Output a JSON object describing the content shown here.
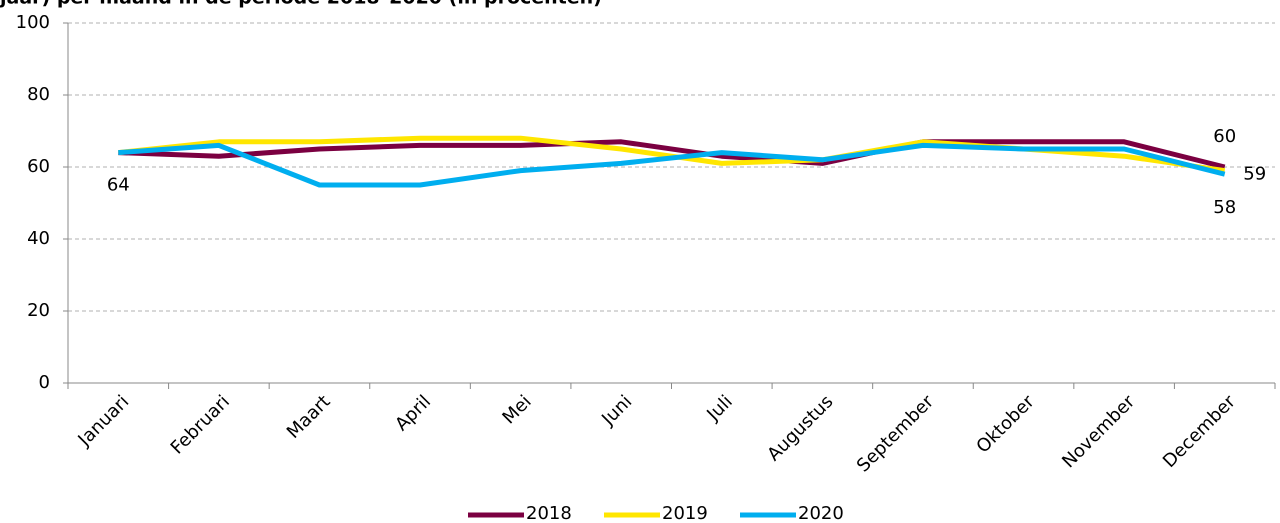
{
  "chart_data": {
    "type": "line",
    "title": "jaar) per maand in de periode 2018–2020 (in procenten)",
    "categories": [
      "Januari",
      "Februari",
      "Maart",
      "April",
      "Mei",
      "Juni",
      "Juli",
      "Augustus",
      "September",
      "Oktober",
      "November",
      "December"
    ],
    "series": [
      {
        "name": "2018",
        "color": "#7b0041",
        "values": [
          64,
          63,
          65,
          66,
          66,
          67,
          63,
          61,
          67,
          67,
          67,
          60
        ],
        "labeled": [
          11
        ]
      },
      {
        "name": "2019",
        "color": "#ffe600",
        "values": [
          64,
          67,
          67,
          68,
          68,
          65,
          61,
          62,
          67,
          65,
          63,
          59
        ],
        "labeled": [
          11
        ]
      },
      {
        "name": "2020",
        "color": "#00aeef",
        "values": [
          64,
          66,
          55,
          55,
          59,
          61,
          64,
          62,
          66,
          65,
          65,
          58
        ],
        "labeled": [
          0,
          11
        ]
      }
    ],
    "ylim": [
      0,
      100
    ],
    "yticks": [
      0,
      20,
      40,
      60,
      80,
      100
    ],
    "grid": true,
    "legend": "bottom"
  }
}
